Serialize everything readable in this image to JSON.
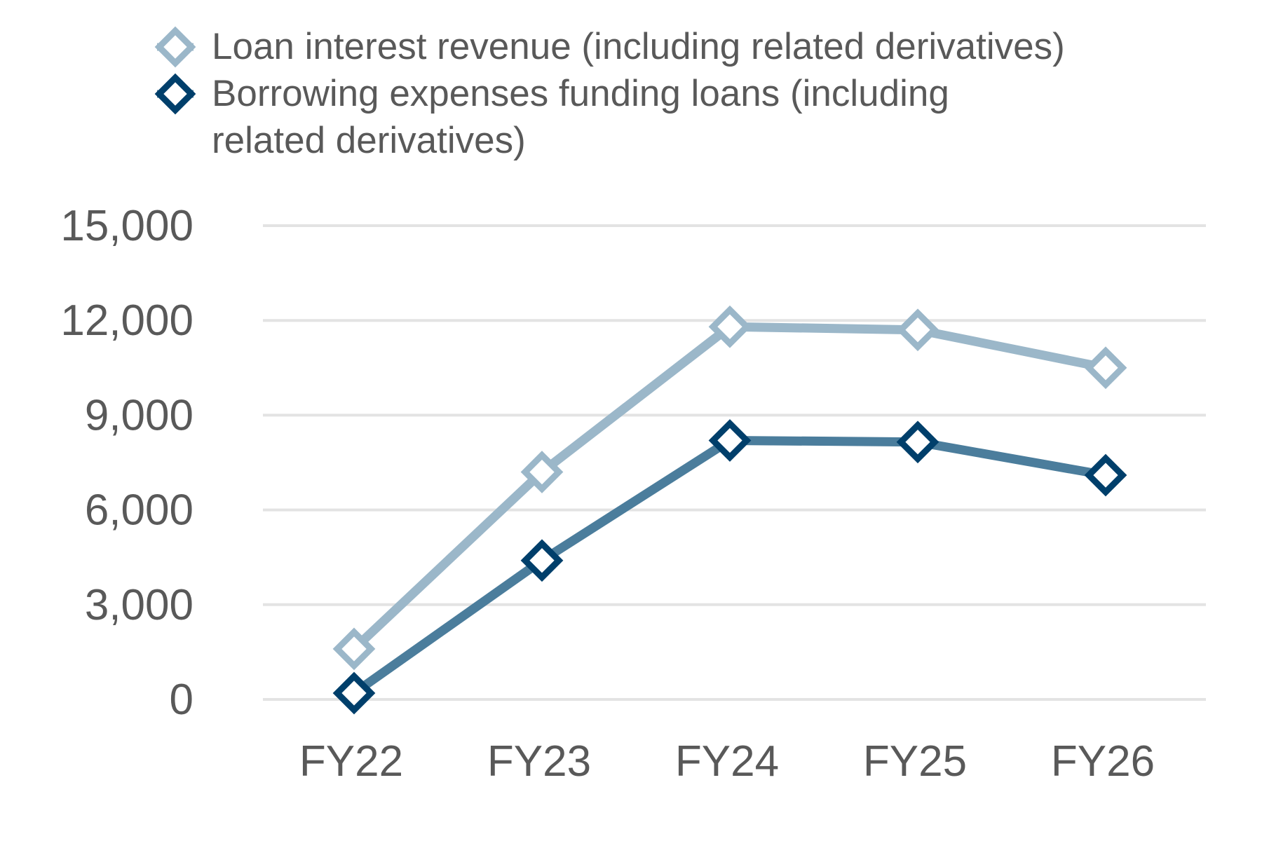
{
  "chart_data": {
    "type": "line",
    "title": "",
    "xlabel": "",
    "ylabel": "",
    "categories": [
      "FY22",
      "FY23",
      "FY24",
      "FY25",
      "FY26"
    ],
    "ylim": [
      0,
      15000
    ],
    "yticks": [
      0,
      3000,
      6000,
      9000,
      12000,
      15000
    ],
    "ytick_labels": [
      "0",
      "3,000",
      "6,000",
      "9,000",
      "12,000",
      "15,000"
    ],
    "grid": true,
    "legend_position": "top",
    "series": [
      {
        "name": "Loan interest revenue (including related derivatives)",
        "name_lines": [
          "Loan interest revenue (including related derivatives)"
        ],
        "values": [
          1600,
          7200,
          11800,
          11700,
          10500
        ],
        "line_color": "#9bb7c9",
        "marker_color": "#9bb7c9",
        "marker": "diamond-open"
      },
      {
        "name": "Borrowing expenses funding loans (including related derivatives)",
        "name_lines": [
          "Borrowing expenses funding loans (including",
          "related derivatives)"
        ],
        "values": [
          200,
          4400,
          8200,
          8150,
          7100
        ],
        "line_color": "#4b7d9c",
        "marker_color": "#003f6b",
        "marker": "diamond-open"
      }
    ],
    "gridline_color": "#e3e3e3",
    "text_color": "#595959"
  }
}
